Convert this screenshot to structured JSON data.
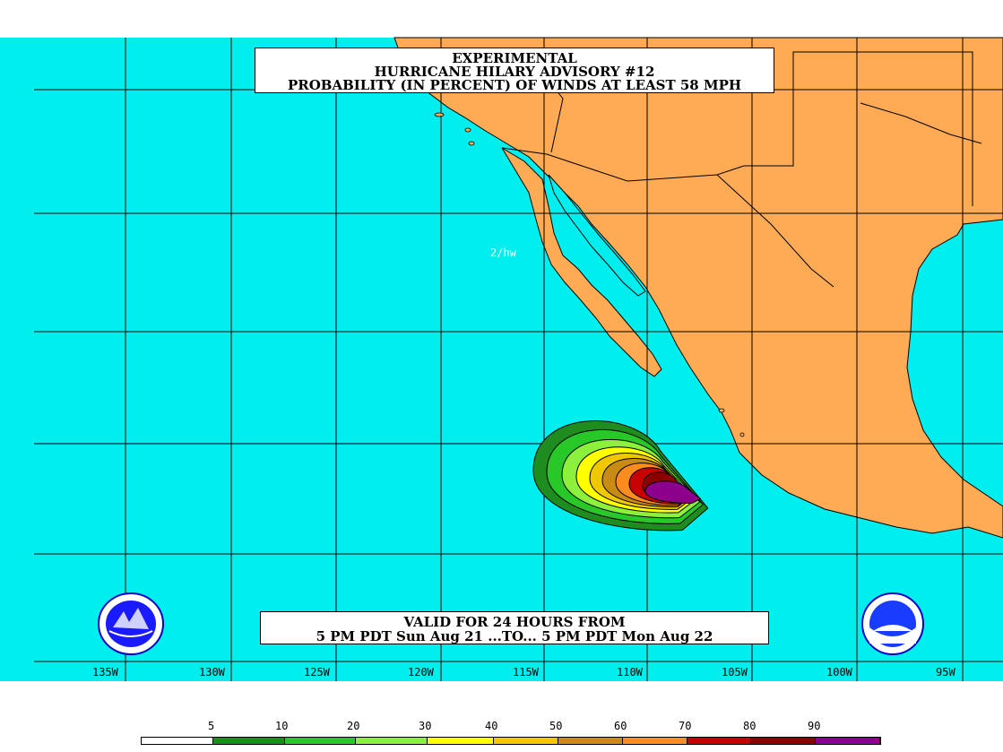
{
  "title_lines": [
    "EXPERIMENTAL",
    "HURRICANE HILARY ADVISORY #12",
    "PROBABILITY (IN PERCENT) OF WINDS AT LEAST 58 MPH"
  ],
  "valid_lines": [
    "VALID FOR 24 HOURS FROM",
    "5 PM PDT Sun Aug 21 ...TO... 5 PM PDT Mon Aug 22"
  ],
  "attribution": "2/hw",
  "longitude_labels": [
    "135W",
    "130W",
    "125W",
    "120W",
    "115W",
    "110W",
    "105W",
    "100W",
    "95W"
  ],
  "legend": {
    "labels": [
      "5",
      "10",
      "20",
      "30",
      "40",
      "50",
      "60",
      "70",
      "80",
      "90"
    ],
    "colors": [
      "#ffffff",
      "#1e8c1e",
      "#28c828",
      "#8cf03c",
      "#ffff00",
      "#f0c800",
      "#c88c14",
      "#ff8c1e",
      "#c80000",
      "#8c0000",
      "#8c008c"
    ]
  },
  "colors": {
    "ocean": "#00eeee",
    "land": "#ffaa55",
    "grid": "#000000"
  },
  "icons": {
    "left_logo": "nws-logo-icon",
    "right_logo": "noaa-logo-icon"
  }
}
